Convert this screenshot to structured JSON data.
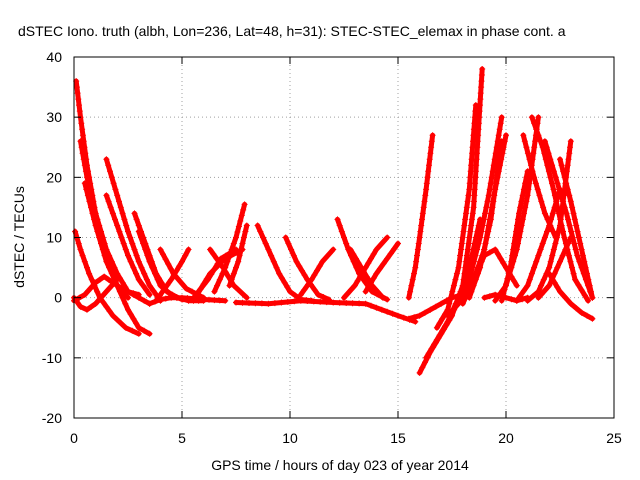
{
  "chart_data": {
    "type": "scatter",
    "title": "dSTEC Iono. truth (albh, Lon=236, Lat=48, h=31): STEC-STEC_elemax in phase cont. a",
    "xlabel": "GPS time / hours of day 023 of year 2014",
    "ylabel": "dSTEC  / TECUs",
    "xlim": [
      0,
      25
    ],
    "ylim": [
      -20,
      40
    ],
    "xticks": [
      0,
      5,
      10,
      15,
      20,
      25
    ],
    "yticks": [
      -20,
      -10,
      0,
      10,
      20,
      30,
      40
    ],
    "grid": true,
    "marker": "+",
    "color": "#ff0000",
    "series": [
      {
        "x": [
          0.1,
          0.3,
          0.6,
          1.0,
          1.5,
          2.0,
          2.5,
          3.0,
          3.5
        ],
        "y": [
          36,
          30,
          22,
          14,
          7,
          2,
          -2,
          -5,
          -6
        ]
      },
      {
        "x": [
          0.05,
          0.3,
          0.7,
          1.2,
          1.8,
          2.4,
          3.0
        ],
        "y": [
          11,
          8,
          4,
          0,
          -3,
          -5,
          -6
        ]
      },
      {
        "x": [
          0.0,
          0.3,
          0.6,
          1.0,
          1.5,
          2.0
        ],
        "y": [
          0,
          -1.5,
          -2,
          -1,
          1,
          3
        ]
      },
      {
        "x": [
          0.3,
          0.6,
          1.0,
          1.5,
          2.0,
          2.5,
          3.0,
          3.5
        ],
        "y": [
          26,
          20,
          14,
          8,
          4,
          1,
          0,
          -1
        ]
      },
      {
        "x": [
          0.5,
          1.0,
          1.5,
          2.0,
          2.5
        ],
        "y": [
          19,
          12,
          6,
          2,
          0
        ]
      },
      {
        "x": [
          1.5,
          2.0,
          2.5,
          3.0,
          3.5,
          4.0
        ],
        "y": [
          23,
          17,
          11,
          6,
          2,
          -0.5
        ]
      },
      {
        "x": [
          1.5,
          2.0,
          2.5,
          3.0,
          3.5
        ],
        "y": [
          17,
          12,
          7,
          3,
          0.5
        ]
      },
      {
        "x": [
          2.8,
          3.3,
          3.8,
          4.3,
          4.8,
          5.3,
          6.0
        ],
        "y": [
          14,
          9,
          4,
          1,
          0,
          -0.5,
          -0.5
        ]
      },
      {
        "x": [
          3.0,
          3.5,
          4.0,
          4.5,
          5.0
        ],
        "y": [
          11,
          6,
          2,
          0.5,
          -0.3
        ]
      },
      {
        "x": [
          0.0,
          0.5,
          1.0,
          1.4,
          2.0,
          2.5,
          3.0
        ],
        "y": [
          -0.5,
          0.5,
          2.5,
          3.5,
          2,
          1,
          0.5
        ]
      },
      {
        "x": [
          3.5,
          4.0,
          4.5,
          5.0,
          6.0,
          7.0
        ],
        "y": [
          -1,
          -0.3,
          0,
          0,
          -0.3,
          -0.5
        ]
      },
      {
        "x": [
          4.0,
          4.6,
          5.2,
          6.0
        ],
        "y": [
          8,
          4,
          1.5,
          0
        ]
      },
      {
        "x": [
          3.8,
          4.5,
          5.0,
          5.3
        ],
        "y": [
          -0.5,
          3,
          6,
          8
        ]
      },
      {
        "x": [
          5.5,
          6.2,
          6.8,
          7.5
        ],
        "y": [
          -0.2,
          3,
          6.5,
          8
        ]
      },
      {
        "x": [
          5.7,
          6.3,
          7.0,
          7.8
        ],
        "y": [
          0.5,
          4,
          6.5,
          8
        ]
      },
      {
        "x": [
          6.3,
          6.9,
          7.4,
          8.0
        ],
        "y": [
          8,
          5,
          2,
          0
        ]
      },
      {
        "x": [
          6.5,
          7.0,
          7.5,
          7.9
        ],
        "y": [
          1,
          5,
          10,
          15.5
        ]
      },
      {
        "x": [
          7.2,
          7.6,
          8.0
        ],
        "y": [
          2,
          6,
          12
        ]
      },
      {
        "x": [
          8.5,
          9.0,
          9.5,
          10.0,
          10.5,
          11.0
        ],
        "y": [
          12,
          8,
          4,
          1,
          -0.3,
          -0.5
        ]
      },
      {
        "x": [
          9.8,
          10.3,
          10.8,
          11.3,
          11.8
        ],
        "y": [
          10,
          6,
          3,
          0.5,
          -0.3
        ]
      },
      {
        "x": [
          10.5,
          11.0,
          11.5,
          12.0
        ],
        "y": [
          0.5,
          3,
          6,
          8
        ]
      },
      {
        "x": [
          12.2,
          12.7,
          13.2,
          13.8,
          14.5
        ],
        "y": [
          13,
          8,
          4,
          1,
          -0.3
        ]
      },
      {
        "x": [
          12.8,
          13.3,
          13.8,
          14.3
        ],
        "y": [
          8,
          5,
          2,
          0
        ]
      },
      {
        "x": [
          12.5,
          13.0,
          13.5,
          14.0,
          14.5
        ],
        "y": [
          0,
          2,
          5,
          8,
          10
        ]
      },
      {
        "x": [
          13.5,
          14.0,
          14.5,
          15.0
        ],
        "y": [
          1,
          4,
          6.5,
          9
        ]
      },
      {
        "x": [
          7.5,
          9,
          10.5,
          12,
          13.5,
          15,
          15.8
        ],
        "y": [
          -0.8,
          -1,
          -0.5,
          -0.8,
          -1,
          -3,
          -4
        ]
      },
      {
        "x": [
          15.5,
          15.8,
          16.0,
          16.3,
          16.6
        ],
        "y": [
          0,
          5,
          10,
          18,
          27
        ]
      },
      {
        "x": [
          15.5,
          16.0,
          16.5,
          17.0,
          17.5,
          18.0
        ],
        "y": [
          -3.5,
          -3,
          -2,
          -1,
          0,
          0.5
        ]
      },
      {
        "x": [
          16.0,
          16.5,
          17.0,
          17.5,
          18.0,
          18.5,
          18.9
        ],
        "y": [
          -12.5,
          -9,
          -6,
          -3,
          2,
          15,
          38
        ]
      },
      {
        "x": [
          16.3,
          16.8,
          17.3,
          17.8,
          18.3,
          18.8
        ],
        "y": [
          -10,
          -7,
          -4,
          0,
          5,
          13
        ]
      },
      {
        "x": [
          16.8,
          17.3,
          17.8,
          18.3,
          18.6
        ],
        "y": [
          -5,
          -2,
          5,
          18,
          32
        ]
      },
      {
        "x": [
          17.3,
          17.8,
          18.3,
          18.8,
          19.2,
          19.8
        ],
        "y": [
          -3,
          -1,
          3,
          10,
          17,
          30
        ]
      },
      {
        "x": [
          18.0,
          18.5,
          19.0,
          19.5,
          20.0
        ],
        "y": [
          -1,
          3,
          8,
          18,
          27
        ]
      },
      {
        "x": [
          18.3,
          18.8,
          19.3,
          19.8
        ],
        "y": [
          0,
          5,
          13,
          26
        ]
      },
      {
        "x": [
          18.5,
          19.0,
          19.5,
          20.0,
          20.5
        ],
        "y": [
          3,
          7,
          8,
          5,
          2
        ]
      },
      {
        "x": [
          19.0,
          19.5,
          20.0,
          20.5,
          21.0
        ],
        "y": [
          0,
          0.5,
          0,
          -0.5,
          0
        ]
      },
      {
        "x": [
          19.8,
          20.2,
          20.6,
          21.0
        ],
        "y": [
          -0.5,
          5,
          14,
          21
        ]
      },
      {
        "x": [
          19.5,
          20.0,
          20.5,
          21.0,
          21.5
        ],
        "y": [
          -0.5,
          2,
          8,
          17,
          30
        ]
      },
      {
        "x": [
          20.5,
          21.0,
          21.5,
          22.0,
          22.5
        ],
        "y": [
          -0.5,
          2,
          7,
          12,
          18
        ]
      },
      {
        "x": [
          21.0,
          21.5,
          22.0,
          22.5,
          23.0
        ],
        "y": [
          -0.5,
          1,
          5,
          12,
          26
        ]
      },
      {
        "x": [
          21.2,
          21.7,
          22.2,
          22.7,
          23.2,
          23.8
        ],
        "y": [
          30,
          25,
          18,
          10,
          3,
          -0.5
        ]
      },
      {
        "x": [
          21.8,
          22.3,
          22.8,
          23.3,
          24.0
        ],
        "y": [
          26,
          20,
          14,
          7,
          0
        ]
      },
      {
        "x": [
          22.5,
          23.0,
          23.5,
          24.0
        ],
        "y": [
          23,
          16,
          8,
          0
        ]
      },
      {
        "x": [
          22.0,
          22.5,
          23.0,
          23.5,
          24.0
        ],
        "y": [
          4,
          1,
          -1,
          -2.5,
          -3.5
        ]
      },
      {
        "x": [
          21.5,
          22.0,
          22.5,
          23.0
        ],
        "y": [
          0,
          2,
          6,
          10
        ]
      },
      {
        "x": [
          20.8,
          21.3,
          21.8,
          22.3
        ],
        "y": [
          27,
          20,
          14,
          10
        ]
      }
    ]
  }
}
